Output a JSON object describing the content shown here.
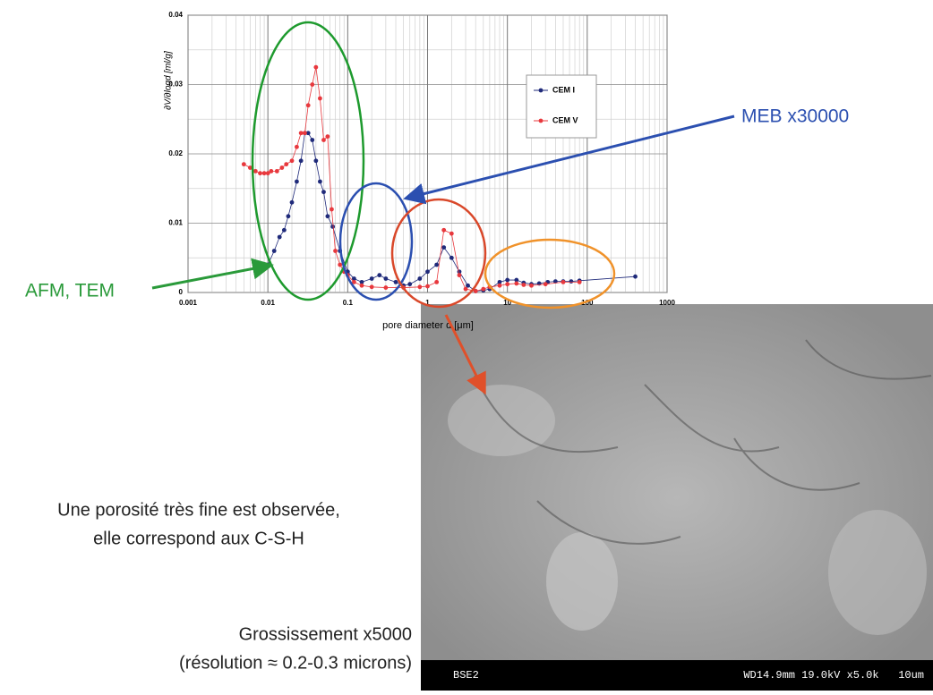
{
  "chart_data": {
    "type": "scatter",
    "x_label": "pore diameter d [μm]",
    "y_label": "∂V/∂logd [ml/g]",
    "x_log": true,
    "grid": true,
    "legend": "upper right",
    "xlim": [
      0.001,
      1000
    ],
    "xticks": [
      0.001,
      0.01,
      0.1,
      1,
      10,
      100,
      1000
    ],
    "ylim": [
      0,
      0.04
    ],
    "yticks": [
      0,
      0.01,
      0.02,
      0.03,
      0.04
    ],
    "series": [
      {
        "name": "CEM I",
        "color": "#1f2a7a",
        "x": [
          0.01,
          0.012,
          0.014,
          0.016,
          0.018,
          0.02,
          0.023,
          0.026,
          0.029,
          0.032,
          0.036,
          0.04,
          0.045,
          0.05,
          0.056,
          0.065,
          0.08,
          0.1,
          0.12,
          0.15,
          0.2,
          0.25,
          0.3,
          0.4,
          0.5,
          0.6,
          0.8,
          1,
          1.3,
          1.6,
          2,
          2.5,
          3.2,
          4,
          5,
          6,
          8,
          10,
          13,
          16,
          20,
          25,
          32,
          40,
          50,
          63,
          80,
          400
        ],
        "values": [
          0.004,
          0.006,
          0.008,
          0.009,
          0.011,
          0.013,
          0.016,
          0.019,
          0.023,
          0.023,
          0.022,
          0.019,
          0.016,
          0.0145,
          0.011,
          0.0095,
          0.006,
          0.003,
          0.002,
          0.0015,
          0.002,
          0.0025,
          0.002,
          0.0015,
          0.001,
          0.0012,
          0.002,
          0.003,
          0.004,
          0.0065,
          0.005,
          0.003,
          0.001,
          0.0002,
          0.0003,
          0.0005,
          0.0015,
          0.0018,
          0.0018,
          0.0014,
          0.0012,
          0.0013,
          0.0015,
          0.0016,
          0.0016,
          0.0016,
          0.0017,
          0.0023
        ]
      },
      {
        "name": "CEM V",
        "color": "#e8383d",
        "x": [
          0.005,
          0.006,
          0.007,
          0.008,
          0.009,
          0.01,
          0.011,
          0.013,
          0.015,
          0.017,
          0.02,
          0.023,
          0.026,
          0.029,
          0.032,
          0.036,
          0.04,
          0.045,
          0.05,
          0.056,
          0.063,
          0.07,
          0.08,
          0.09,
          0.1,
          0.12,
          0.15,
          0.2,
          0.3,
          0.5,
          0.8,
          1,
          1.3,
          1.6,
          2,
          2.5,
          3,
          4,
          5,
          6,
          8,
          10,
          13,
          16,
          20,
          30,
          50,
          80
        ],
        "values": [
          0.0185,
          0.018,
          0.0175,
          0.0172,
          0.0172,
          0.0172,
          0.0175,
          0.0175,
          0.018,
          0.0185,
          0.019,
          0.021,
          0.023,
          0.023,
          0.027,
          0.03,
          0.0325,
          0.028,
          0.022,
          0.0225,
          0.012,
          0.006,
          0.004,
          0.003,
          0.0025,
          0.0015,
          0.001,
          0.0008,
          0.0007,
          0.0007,
          0.0008,
          0.0009,
          0.0015,
          0.009,
          0.0085,
          0.0025,
          0.0005,
          0.0002,
          0.0005,
          0.0008,
          0.001,
          0.0012,
          0.0013,
          0.0011,
          0.001,
          0.0012,
          0.0015,
          0.0015
        ]
      }
    ],
    "annotations": {
      "meb": "MEB x30000",
      "afm": "AFM, TEM"
    }
  },
  "slide": {
    "observation": [
      "Une porosité très fine est observée,",
      "elle correspond aux C-S-H"
    ],
    "magnification": [
      "Grossissement x5000",
      "(résolution ≈ 0.2-0.3 microns)"
    ],
    "sem_bar": {
      "left": "BSE2",
      "right": "WD14.9mm 19.0kV x5.0k   10um"
    }
  }
}
